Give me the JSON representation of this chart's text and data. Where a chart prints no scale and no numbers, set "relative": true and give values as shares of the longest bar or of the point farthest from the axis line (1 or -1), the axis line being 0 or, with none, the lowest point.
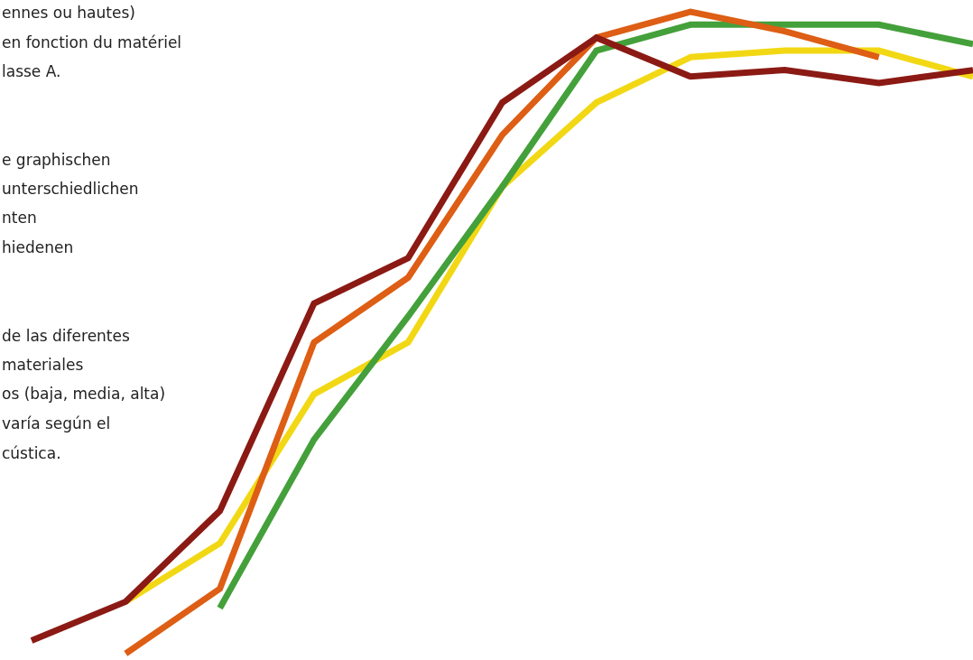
{
  "chart_data": {
    "type": "line",
    "relative": true,
    "categories": [
      null,
      null,
      null,
      null,
      null,
      null,
      null,
      null,
      null,
      null,
      null
    ],
    "series": [
      {
        "color": "#f2d814",
        "values": [
          null,
          0.09,
          0.18,
          0.41,
          0.49,
          0.73,
          0.86,
          0.93,
          0.94,
          0.94,
          0.9
        ]
      },
      {
        "color": "#44a03a",
        "values": [
          null,
          null,
          0.08,
          0.34,
          0.53,
          0.73,
          0.94,
          0.98,
          0.98,
          0.98,
          0.95
        ]
      },
      {
        "color": "#dd5e14",
        "values": [
          null,
          0.01,
          0.11,
          0.49,
          0.59,
          0.81,
          0.96,
          1,
          0.97,
          0.93,
          null
        ]
      },
      {
        "color": "#8b1a14",
        "values": [
          0.03,
          0.09,
          0.23,
          0.55,
          0.62,
          0.86,
          0.96,
          0.9,
          0.91,
          0.89,
          0.91
        ]
      }
    ],
    "annotations": [
      "ennes ou hautes)\nen fonction du matériel\nlasse A.",
      "e graphischen\nunterschiedlichen\nnten\nhiedenen",
      "de las diferentes\nmateriales\nos (baja, media, alta)\nvaría según el\ncústica."
    ],
    "marker": "none",
    "line_style": "solid"
  }
}
